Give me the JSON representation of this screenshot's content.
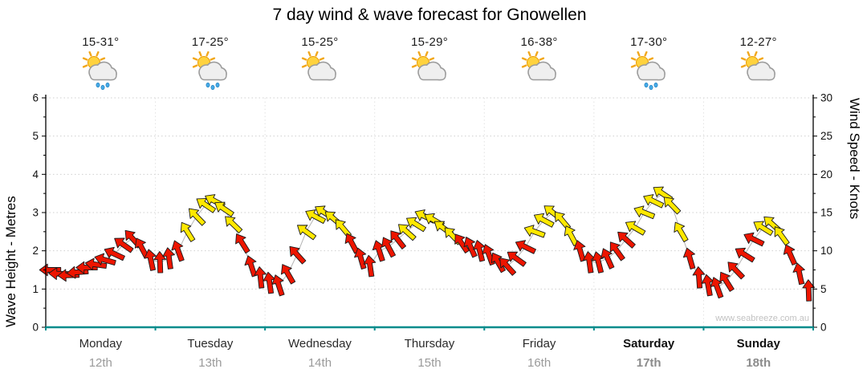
{
  "title": "7 day wind & wave forecast for Gnowellen",
  "watermark": "www.seabreeze.com.au",
  "axis_left": {
    "label": "Wave Height - Metres",
    "ticks": [
      "0",
      "1",
      "2",
      "3",
      "4",
      "5",
      "6"
    ],
    "max": 6
  },
  "axis_right": {
    "label": "Wind Speed - Knots",
    "ticks": [
      "0",
      "5",
      "10",
      "15",
      "20",
      "25",
      "30"
    ],
    "max": 30
  },
  "days": [
    {
      "name": "Monday",
      "date": "12th",
      "temp": "15-31°",
      "icon": "sun-cloud-rain",
      "bold": false
    },
    {
      "name": "Tuesday",
      "date": "13th",
      "temp": "17-25°",
      "icon": "sun-cloud-rain",
      "bold": false
    },
    {
      "name": "Wednesday",
      "date": "14th",
      "temp": "15-25°",
      "icon": "sun-cloud",
      "bold": false
    },
    {
      "name": "Thursday",
      "date": "15th",
      "temp": "15-29°",
      "icon": "sun-cloud",
      "bold": false
    },
    {
      "name": "Friday",
      "date": "16th",
      "temp": "16-38°",
      "icon": "sun-cloud",
      "bold": false
    },
    {
      "name": "Saturday",
      "date": "17th",
      "temp": "17-30°",
      "icon": "sun-cloud-rain",
      "bold": true
    },
    {
      "name": "Sunday",
      "date": "18th",
      "temp": "12-27°",
      "icon": "sun-cloud",
      "bold": true
    }
  ],
  "chart_data": {
    "type": "wind-arrows",
    "title": "7 day wind & wave forecast for Gnowellen",
    "y_left": {
      "label": "Wave Height - Metres",
      "min": 0,
      "max": 6
    },
    "y_right": {
      "label": "Wind Speed - Knots",
      "min": 0,
      "max": 30
    },
    "x_categories": [
      "Monday 12th",
      "Tuesday 13th",
      "Wednesday 14th",
      "Thursday 15th",
      "Friday 16th",
      "Saturday 17th",
      "Sunday 18th"
    ],
    "sample_hours": 2,
    "yellow_min_knots": 12,
    "colors": {
      "red": "#ED1500",
      "yellow": "#FFE800",
      "line": "#b3b3b3",
      "axis": "#008C8C",
      "grid": "#cfcfcf"
    },
    "days_series": [
      {
        "day": "Monday",
        "knots": [
          7.5,
          7,
          6.8,
          7.2,
          7.8,
          8.2,
          8.8,
          9.6,
          10.8,
          11.6,
          10.4,
          8.8
        ],
        "dirs": [
          180,
          182,
          178,
          175,
          180,
          188,
          196,
          205,
          215,
          228,
          242,
          258
        ]
      },
      {
        "day": "Tuesday",
        "knots": [
          8.5,
          9,
          10,
          12.5,
          14.5,
          16,
          16.5,
          15.5,
          13.5,
          11,
          8,
          6.5
        ],
        "dirs": [
          268,
          262,
          250,
          238,
          226,
          214,
          208,
          214,
          224,
          238,
          252,
          264
        ]
      },
      {
        "day": "Wednesday",
        "knots": [
          5.8,
          5.5,
          7,
          9.5,
          12.5,
          14.5,
          15,
          14.2,
          13,
          11,
          9,
          8
        ],
        "dirs": [
          262,
          252,
          240,
          228,
          216,
          208,
          212,
          220,
          230,
          242,
          254,
          262
        ]
      },
      {
        "day": "Thursday",
        "knots": [
          10,
          10.5,
          11.5,
          12.5,
          13.5,
          14.5,
          14,
          13,
          12,
          11,
          10.5,
          10
        ],
        "dirs": [
          252,
          242,
          232,
          222,
          212,
          206,
          210,
          216,
          226,
          236,
          246,
          256
        ]
      },
      {
        "day": "Friday",
        "knots": [
          9.5,
          8.5,
          8,
          9,
          10.5,
          12.5,
          14,
          15,
          14,
          12,
          10,
          8.5
        ],
        "dirs": [
          250,
          240,
          228,
          216,
          206,
          200,
          208,
          218,
          230,
          242,
          254,
          262
        ]
      },
      {
        "day": "Saturday",
        "knots": [
          8.5,
          9,
          10,
          11.5,
          13,
          15,
          16.5,
          17.5,
          16,
          12.5,
          9,
          6.5
        ],
        "dirs": [
          256,
          246,
          234,
          222,
          210,
          202,
          206,
          214,
          226,
          240,
          254,
          266
        ]
      },
      {
        "day": "Sunday",
        "knots": [
          5.5,
          5.2,
          6,
          7.5,
          9.5,
          11.5,
          13,
          13.5,
          12,
          9.5,
          7,
          4.8
        ],
        "dirs": [
          260,
          250,
          238,
          226,
          212,
          206,
          212,
          222,
          234,
          246,
          258,
          268
        ]
      }
    ]
  }
}
